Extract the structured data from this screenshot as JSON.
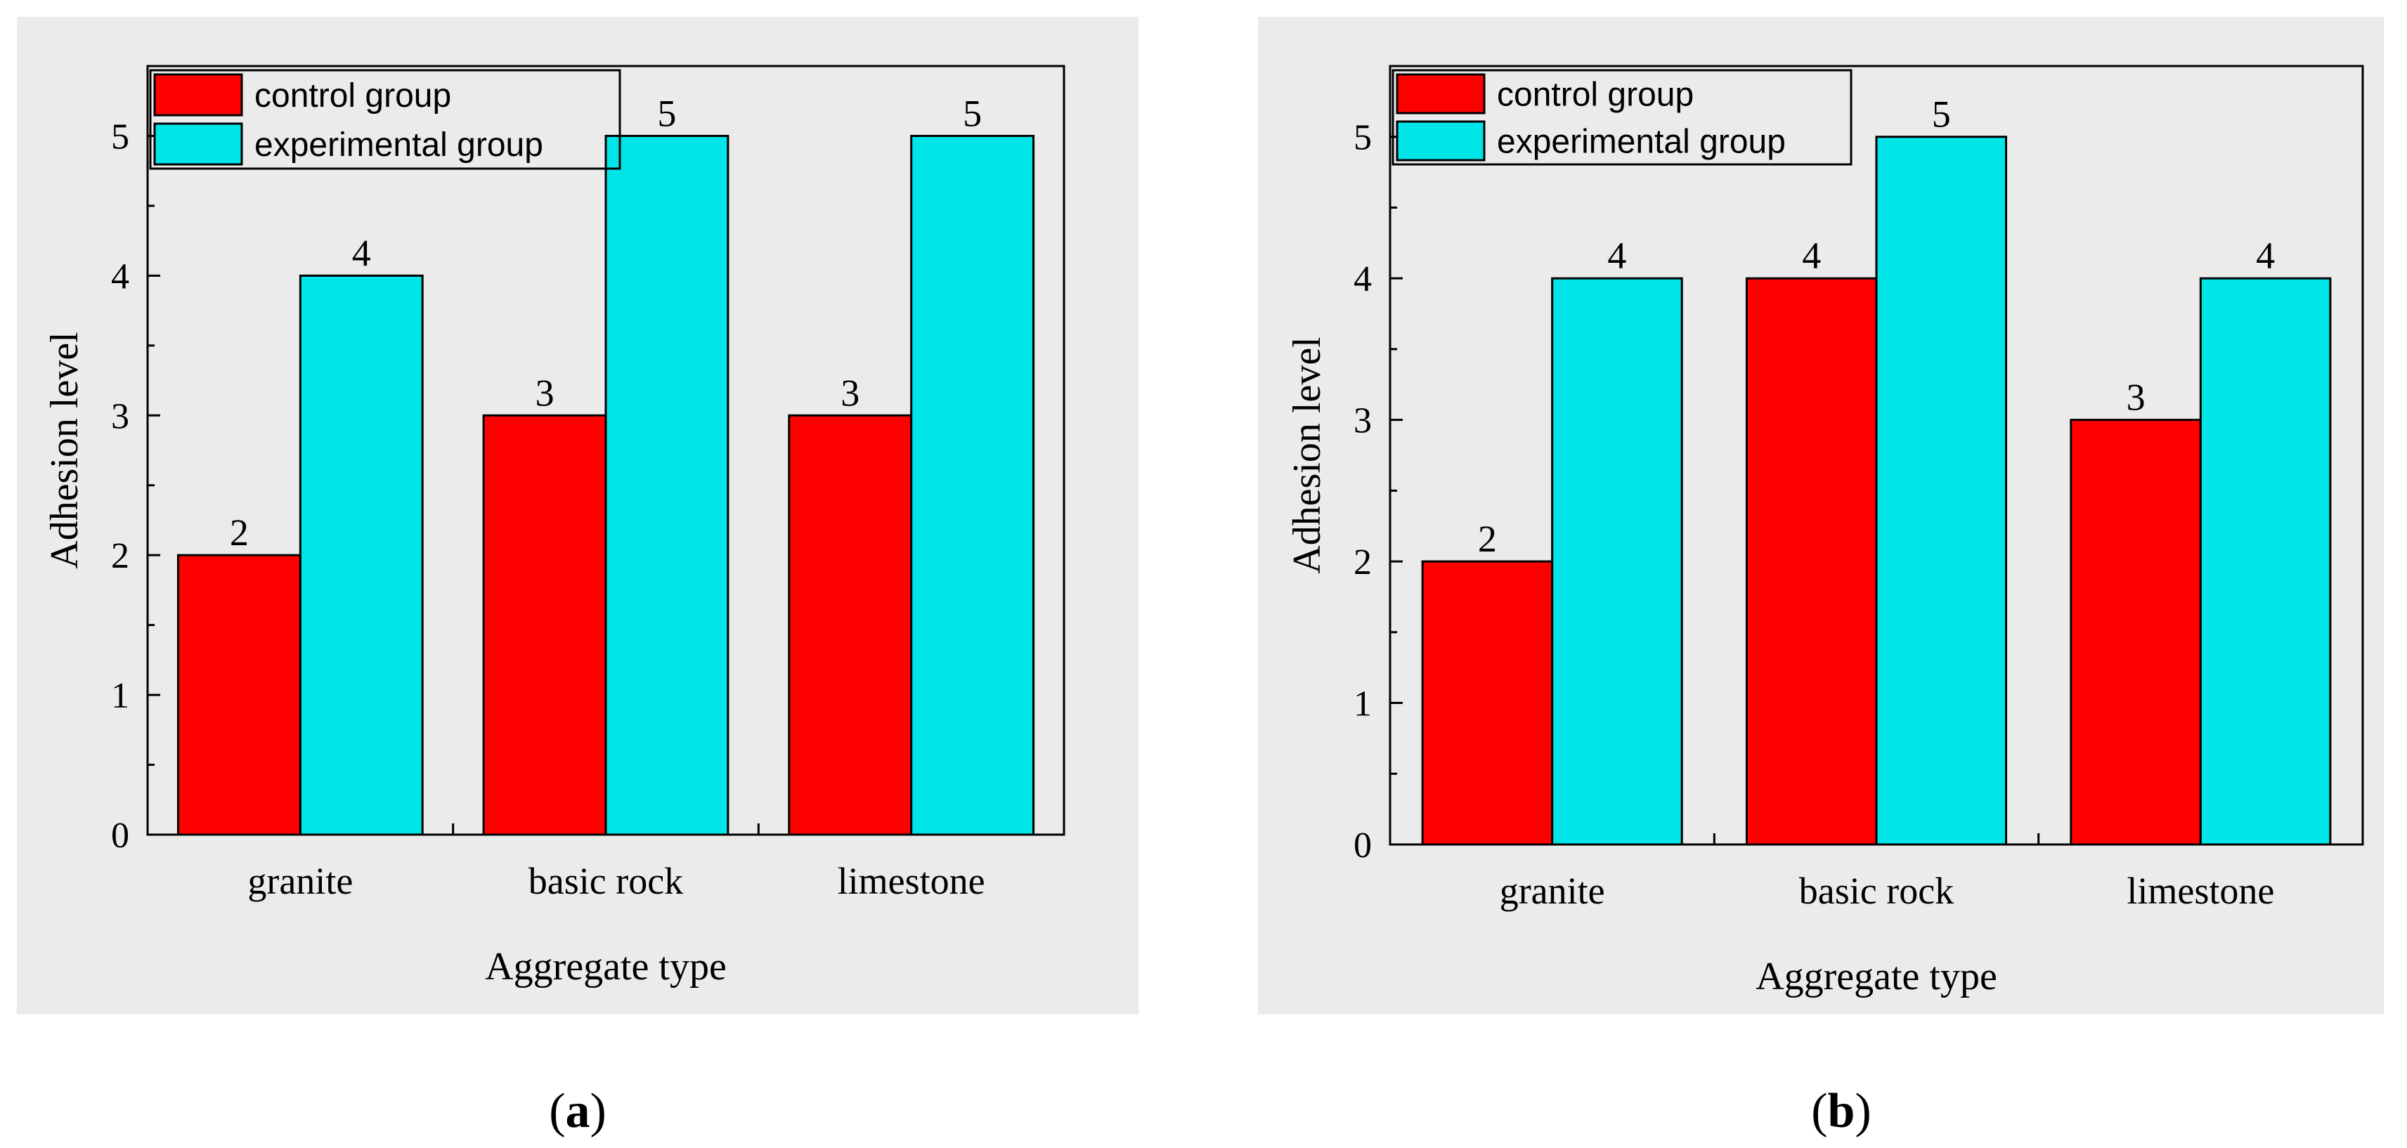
{
  "colors": {
    "control": "#ff0000",
    "experimental": "#00e5e8",
    "panel_bg": "#ebebeb",
    "axis": "#000000"
  },
  "captions": {
    "a_open": "(",
    "a_letter": "a",
    "a_close": ")",
    "b_open": "(",
    "b_letter": "b",
    "b_close": ")"
  },
  "chart_data": [
    {
      "type": "bar",
      "panel": "a",
      "title": "",
      "xlabel": "Aggregate type",
      "ylabel": "Adhesion level",
      "categories": [
        "granite",
        "basic rock",
        "limestone"
      ],
      "ylim": [
        0,
        5.5
      ],
      "yticks": [
        "0",
        "1",
        "2",
        "3",
        "4",
        "5"
      ],
      "legend": {
        "placement": "top-left"
      },
      "series": [
        {
          "name": "control group",
          "color": "#ff0000",
          "values": [
            2,
            3,
            3
          ]
        },
        {
          "name": "experimental group",
          "color": "#00e5e8",
          "values": [
            4,
            5,
            5
          ]
        }
      ]
    },
    {
      "type": "bar",
      "panel": "b",
      "title": "",
      "xlabel": "Aggregate type",
      "ylabel": "Adhesion level",
      "categories": [
        "granite",
        "basic rock",
        "limestone"
      ],
      "ylim": [
        0,
        5.5
      ],
      "yticks": [
        "0",
        "1",
        "2",
        "3",
        "4",
        "5"
      ],
      "legend": {
        "placement": "top-left"
      },
      "series": [
        {
          "name": "control group",
          "color": "#ff0000",
          "values": [
            2,
            4,
            3
          ]
        },
        {
          "name": "experimental group",
          "color": "#00e5e8",
          "values": [
            4,
            5,
            4
          ]
        }
      ]
    }
  ]
}
